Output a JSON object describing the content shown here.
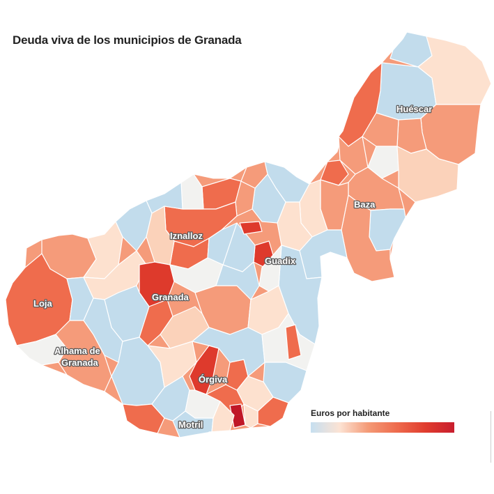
{
  "title": "Deuda viva de los municipios de Granada",
  "legend": {
    "title": "Euros por habitante",
    "colors": [
      "#c6dff0",
      "#fce3d4",
      "#f49a76",
      "#ee6b4d",
      "#e03c2e",
      "#c81e2e"
    ]
  },
  "palette": {
    "light_blue": "#c2dcec",
    "very_light": "#f2f2f0",
    "light_peach": "#fde1cf",
    "peach": "#f9c2a5",
    "salmon": "#f59b7a",
    "orange_red": "#ef6c4d",
    "red": "#de3a2c",
    "dark_red": "#c01727"
  },
  "places": [
    "Huéscar",
    "Baza",
    "Iznalloz",
    "Guadix",
    "Loja",
    "Granada",
    "Alhama de",
    "Granada",
    "Órgiva",
    "Motril"
  ]
}
